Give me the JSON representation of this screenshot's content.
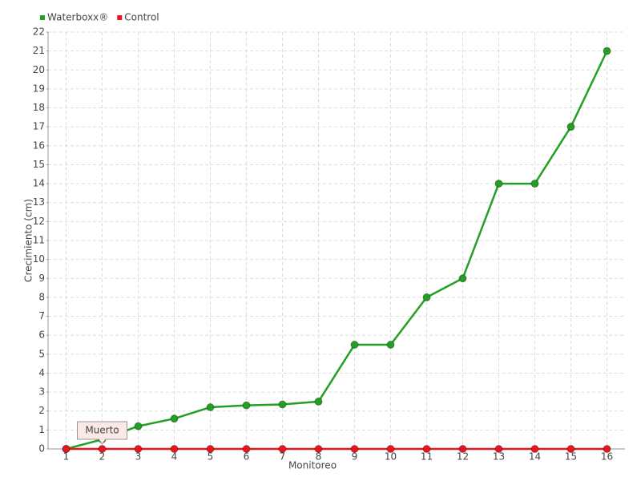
{
  "chart_data": {
    "type": "line",
    "x_label": "Monitoreo",
    "y_label": "Crecimiento (cm)",
    "categories": [
      "1",
      "2",
      "3",
      "4",
      "5",
      "6",
      "7",
      "8",
      "9",
      "10",
      "11",
      "12",
      "13",
      "14",
      "15",
      "16"
    ],
    "series": [
      {
        "name": "Waterboxx®",
        "color": "#22a022",
        "values": [
          0,
          0.5,
          1.2,
          1.6,
          2.2,
          2.3,
          2.35,
          2.5,
          5.5,
          5.5,
          8,
          9,
          14,
          14,
          17,
          21
        ]
      },
      {
        "name": "Control",
        "color": "#e8141e",
        "values": [
          0,
          0,
          0,
          0,
          0,
          0,
          0,
          0,
          0,
          0,
          0,
          0,
          0,
          0,
          0,
          0
        ]
      }
    ],
    "annotation": "Muerto",
    "ylim": [
      0,
      22
    ],
    "yticks": [
      0,
      1,
      2,
      3,
      4,
      5,
      6,
      7,
      8,
      9,
      10,
      11,
      12,
      13,
      14,
      15,
      16,
      17,
      18,
      19,
      20,
      21,
      22
    ],
    "grid": true
  }
}
